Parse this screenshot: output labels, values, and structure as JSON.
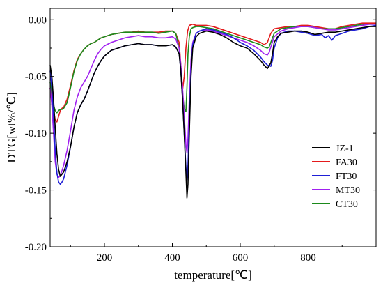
{
  "chart_data": {
    "type": "line",
    "title": "",
    "xlabel": "temperature[℃]",
    "ylabel": "DTG[wt%/℃]",
    "xlim": [
      40,
      1000
    ],
    "ylim": [
      -0.2,
      0.01
    ],
    "xticks": [
      200,
      400,
      600,
      800
    ],
    "xtick_labels": [
      "200",
      "400",
      "600",
      "800"
    ],
    "yticks": [
      0.0,
      -0.05,
      -0.1,
      -0.15,
      -0.2
    ],
    "ytick_labels": [
      "0.00",
      "-0.05",
      "-0.10",
      "-0.15",
      "-0.20"
    ],
    "grid": false,
    "legend_position": "right",
    "series": [
      {
        "name": "JZ-1",
        "color": "#000000",
        "x": [
          40,
          45,
          50,
          55,
          60,
          65,
          70,
          80,
          90,
          100,
          110,
          120,
          130,
          140,
          150,
          160,
          170,
          180,
          190,
          200,
          220,
          240,
          260,
          280,
          300,
          320,
          340,
          360,
          380,
          400,
          410,
          420,
          425,
          430,
          435,
          440,
          443,
          446,
          450,
          455,
          460,
          470,
          480,
          500,
          520,
          540,
          560,
          580,
          600,
          620,
          640,
          660,
          670,
          680,
          690,
          695,
          700,
          710,
          720,
          740,
          760,
          780,
          800,
          820,
          840,
          860,
          880,
          900,
          920,
          940,
          960,
          980,
          1000
        ],
        "y": [
          -0.04,
          -0.05,
          -0.07,
          -0.095,
          -0.118,
          -0.132,
          -0.138,
          -0.134,
          -0.125,
          -0.112,
          -0.095,
          -0.082,
          -0.075,
          -0.07,
          -0.063,
          -0.055,
          -0.047,
          -0.041,
          -0.036,
          -0.032,
          -0.027,
          -0.025,
          -0.023,
          -0.022,
          -0.021,
          -0.022,
          -0.022,
          -0.023,
          -0.023,
          -0.022,
          -0.024,
          -0.03,
          -0.045,
          -0.07,
          -0.1,
          -0.135,
          -0.157,
          -0.145,
          -0.1,
          -0.05,
          -0.025,
          -0.015,
          -0.012,
          -0.01,
          -0.011,
          -0.013,
          -0.016,
          -0.02,
          -0.023,
          -0.025,
          -0.03,
          -0.036,
          -0.04,
          -0.043,
          -0.038,
          -0.03,
          -0.02,
          -0.015,
          -0.012,
          -0.011,
          -0.01,
          -0.01,
          -0.011,
          -0.013,
          -0.012,
          -0.011,
          -0.011,
          -0.01,
          -0.009,
          -0.008,
          -0.007,
          -0.006,
          -0.006
        ]
      },
      {
        "name": "FA30",
        "color": "#e41a1c",
        "x": [
          40,
          45,
          50,
          55,
          60,
          65,
          70,
          75,
          80,
          90,
          100,
          110,
          120,
          130,
          140,
          150,
          160,
          170,
          180,
          190,
          200,
          220,
          240,
          260,
          280,
          300,
          320,
          340,
          360,
          380,
          400,
          410,
          420,
          425,
          430,
          435,
          440,
          445,
          450,
          460,
          470,
          480,
          500,
          520,
          540,
          560,
          580,
          600,
          620,
          640,
          660,
          670,
          680,
          685,
          690,
          700,
          720,
          740,
          760,
          780,
          800,
          820,
          840,
          860,
          880,
          900,
          920,
          940,
          960,
          980,
          1000
        ],
        "y": [
          -0.06,
          -0.07,
          -0.08,
          -0.088,
          -0.09,
          -0.085,
          -0.08,
          -0.078,
          -0.077,
          -0.07,
          -0.058,
          -0.045,
          -0.035,
          -0.03,
          -0.026,
          -0.023,
          -0.021,
          -0.02,
          -0.018,
          -0.016,
          -0.015,
          -0.013,
          -0.012,
          -0.011,
          -0.011,
          -0.01,
          -0.011,
          -0.011,
          -0.011,
          -0.01,
          -0.01,
          -0.012,
          -0.02,
          -0.04,
          -0.062,
          -0.05,
          -0.025,
          -0.01,
          -0.005,
          -0.004,
          -0.005,
          -0.005,
          -0.005,
          -0.006,
          -0.008,
          -0.01,
          -0.012,
          -0.014,
          -0.016,
          -0.018,
          -0.02,
          -0.022,
          -0.02,
          -0.016,
          -0.012,
          -0.008,
          -0.007,
          -0.006,
          -0.006,
          -0.005,
          -0.005,
          -0.006,
          -0.007,
          -0.008,
          -0.008,
          -0.006,
          -0.005,
          -0.004,
          -0.003,
          -0.003,
          -0.003
        ]
      },
      {
        "name": "FT30",
        "color": "#1f1fd6",
        "x": [
          40,
          45,
          50,
          55,
          60,
          65,
          70,
          75,
          80,
          90,
          100,
          110,
          120,
          130,
          140,
          150,
          160,
          170,
          180,
          190,
          200,
          220,
          240,
          260,
          280,
          300,
          320,
          340,
          360,
          380,
          400,
          410,
          420,
          425,
          430,
          435,
          440,
          443,
          446,
          450,
          455,
          460,
          470,
          480,
          500,
          520,
          540,
          560,
          580,
          600,
          620,
          640,
          660,
          670,
          680,
          690,
          695,
          700,
          710,
          720,
          740,
          760,
          780,
          800,
          820,
          840,
          850,
          860,
          870,
          880,
          900,
          920,
          940,
          960,
          980,
          1000
        ],
        "y": [
          -0.045,
          -0.06,
          -0.085,
          -0.115,
          -0.135,
          -0.143,
          -0.145,
          -0.143,
          -0.14,
          -0.128,
          -0.112,
          -0.095,
          -0.082,
          -0.075,
          -0.07,
          -0.063,
          -0.055,
          -0.047,
          -0.041,
          -0.036,
          -0.032,
          -0.027,
          -0.025,
          -0.023,
          -0.022,
          -0.021,
          -0.022,
          -0.022,
          -0.023,
          -0.023,
          -0.022,
          -0.024,
          -0.03,
          -0.045,
          -0.07,
          -0.1,
          -0.13,
          -0.141,
          -0.128,
          -0.09,
          -0.045,
          -0.022,
          -0.012,
          -0.01,
          -0.008,
          -0.009,
          -0.011,
          -0.013,
          -0.016,
          -0.02,
          -0.023,
          -0.027,
          -0.033,
          -0.037,
          -0.04,
          -0.041,
          -0.036,
          -0.025,
          -0.016,
          -0.012,
          -0.01,
          -0.01,
          -0.011,
          -0.012,
          -0.014,
          -0.013,
          -0.016,
          -0.014,
          -0.018,
          -0.014,
          -0.012,
          -0.01,
          -0.009,
          -0.008,
          -0.006,
          -0.005
        ]
      },
      {
        "name": "MT30",
        "color": "#a020f0",
        "x": [
          40,
          45,
          50,
          55,
          60,
          65,
          70,
          75,
          80,
          90,
          100,
          110,
          120,
          130,
          140,
          150,
          160,
          170,
          180,
          190,
          200,
          220,
          240,
          260,
          280,
          300,
          320,
          340,
          360,
          380,
          400,
          410,
          420,
          425,
          430,
          435,
          440,
          443,
          446,
          450,
          455,
          460,
          470,
          480,
          500,
          520,
          540,
          560,
          580,
          600,
          620,
          640,
          660,
          670,
          680,
          685,
          690,
          700,
          720,
          740,
          760,
          780,
          800,
          820,
          840,
          860,
          880,
          900,
          920,
          940,
          960,
          980,
          1000
        ],
        "y": [
          -0.06,
          -0.075,
          -0.1,
          -0.125,
          -0.136,
          -0.139,
          -0.137,
          -0.133,
          -0.128,
          -0.115,
          -0.098,
          -0.08,
          -0.068,
          -0.06,
          -0.055,
          -0.05,
          -0.043,
          -0.036,
          -0.03,
          -0.026,
          -0.023,
          -0.02,
          -0.018,
          -0.016,
          -0.015,
          -0.014,
          -0.015,
          -0.015,
          -0.016,
          -0.016,
          -0.015,
          -0.017,
          -0.025,
          -0.04,
          -0.06,
          -0.085,
          -0.11,
          -0.117,
          -0.105,
          -0.07,
          -0.035,
          -0.02,
          -0.012,
          -0.01,
          -0.009,
          -0.01,
          -0.012,
          -0.014,
          -0.016,
          -0.018,
          -0.02,
          -0.023,
          -0.027,
          -0.03,
          -0.031,
          -0.029,
          -0.024,
          -0.015,
          -0.01,
          -0.008,
          -0.007,
          -0.006,
          -0.006,
          -0.007,
          -0.008,
          -0.009,
          -0.009,
          -0.008,
          -0.007,
          -0.006,
          -0.005,
          -0.004,
          -0.004
        ]
      },
      {
        "name": "CT30",
        "color": "#1b8a1b",
        "x": [
          40,
          45,
          50,
          55,
          60,
          65,
          70,
          75,
          80,
          90,
          100,
          110,
          120,
          130,
          140,
          150,
          160,
          170,
          180,
          190,
          200,
          220,
          240,
          260,
          280,
          300,
          320,
          340,
          360,
          380,
          400,
          410,
          420,
          425,
          430,
          435,
          440,
          443,
          446,
          450,
          455,
          460,
          470,
          480,
          500,
          520,
          540,
          560,
          580,
          600,
          620,
          640,
          660,
          670,
          680,
          685,
          690,
          700,
          720,
          740,
          760,
          780,
          800,
          820,
          840,
          860,
          880,
          900,
          920,
          940,
          960,
          980,
          1000
        ],
        "y": [
          -0.055,
          -0.065,
          -0.075,
          -0.08,
          -0.082,
          -0.08,
          -0.079,
          -0.079,
          -0.078,
          -0.073,
          -0.06,
          -0.046,
          -0.036,
          -0.03,
          -0.026,
          -0.023,
          -0.021,
          -0.02,
          -0.018,
          -0.016,
          -0.015,
          -0.013,
          -0.012,
          -0.011,
          -0.011,
          -0.011,
          -0.011,
          -0.011,
          -0.012,
          -0.011,
          -0.01,
          -0.012,
          -0.025,
          -0.045,
          -0.065,
          -0.078,
          -0.081,
          -0.06,
          -0.03,
          -0.015,
          -0.008,
          -0.007,
          -0.006,
          -0.006,
          -0.007,
          -0.008,
          -0.01,
          -0.012,
          -0.014,
          -0.016,
          -0.018,
          -0.02,
          -0.022,
          -0.024,
          -0.025,
          -0.024,
          -0.02,
          -0.012,
          -0.008,
          -0.007,
          -0.006,
          -0.006,
          -0.006,
          -0.007,
          -0.008,
          -0.008,
          -0.008,
          -0.007,
          -0.006,
          -0.005,
          -0.004,
          -0.004,
          -0.004
        ]
      }
    ]
  }
}
